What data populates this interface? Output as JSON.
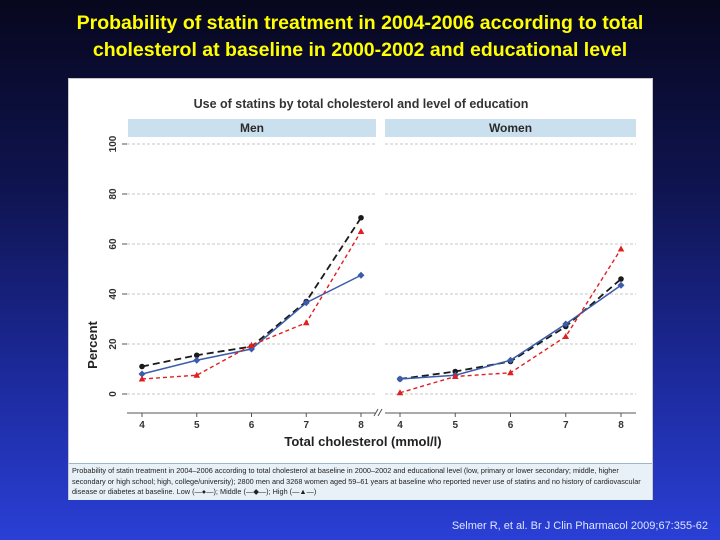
{
  "slide": {
    "title_line1": "Probability of statin treatment in 2004-2006 according to total",
    "title_line2": "cholesterol at baseline in 2000-2002 and educational level",
    "citation": "Selmer R, et al. Br J Clin Pharmacol 2009;67:355-62"
  },
  "figure": {
    "caption": "Probability of statin treatment in 2004–2006 according to total cholesterol at baseline in 2000–2002 and educational level (low, primary or lower secondary; middle, higher secondary or high school; high, college/university); 2800 men and 3268 women aged 59–61 years at baseline who reported never use of statins and no history of cardiovascular disease or diabetes at baseline. Low (—●—); Middle (—◆—); High (—▲—)"
  },
  "chart_data": {
    "type": "line",
    "title": "Use of statins by total cholesterol and level of education",
    "xlabel": "Total cholesterol (mmol/l)",
    "ylabel": "Percent",
    "ylim": [
      0,
      100
    ],
    "yticks": [
      "0",
      "20",
      "40",
      "60",
      "80",
      "100"
    ],
    "xticks": [
      "4",
      "5",
      "6",
      "7",
      "8"
    ],
    "x": [
      4,
      5,
      6,
      7,
      8
    ],
    "grid": true,
    "colors": {
      "Low": "#1a1a1a",
      "Middle": "#3b5bab",
      "High": "#e02020"
    },
    "panels": [
      {
        "name": "Men",
        "series": [
          {
            "name": "Low",
            "values": [
              11,
              15.5,
              19,
              37,
              70.5
            ]
          },
          {
            "name": "Middle",
            "values": [
              8,
              13.5,
              18,
              36.5,
              47.5
            ]
          },
          {
            "name": "High",
            "values": [
              6,
              7.5,
              19.5,
              28.5,
              65
            ]
          }
        ]
      },
      {
        "name": "Women",
        "series": [
          {
            "name": "Low",
            "values": [
              6,
              9,
              13,
              27,
              46
            ]
          },
          {
            "name": "Middle",
            "values": [
              6,
              7.5,
              13.5,
              28,
              43.5
            ]
          },
          {
            "name": "High",
            "values": [
              0.5,
              7,
              8.5,
              23,
              58
            ]
          }
        ]
      }
    ]
  }
}
